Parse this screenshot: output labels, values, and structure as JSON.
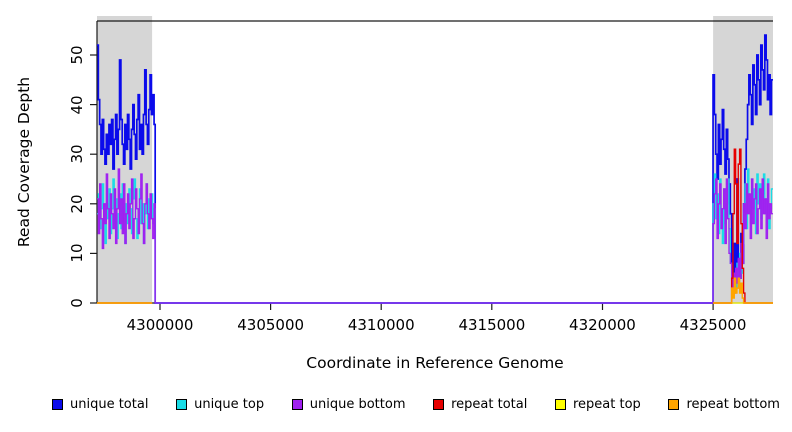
{
  "chart_data": {
    "type": "line",
    "subtype": "step-coverage-plot",
    "title": "",
    "xlabel": "Coordinate in Reference Genome",
    "ylabel": "Read Coverage Depth",
    "xlim": [
      4297150,
      4327710
    ],
    "ylim": [
      0,
      57
    ],
    "x_ticks": [
      4300000,
      4305000,
      4310000,
      4315000,
      4320000,
      4325000
    ],
    "y_ticks": [
      0,
      10,
      20,
      30,
      40,
      50
    ],
    "grid": false,
    "legend_position": "bottom",
    "shaded_region_color": "#D6D6D6",
    "shaded_regions": [
      {
        "x0": 4297150,
        "x1": 4299640
      },
      {
        "x0": 4325000,
        "x1": 4327710
      }
    ],
    "series": [
      {
        "name": "unique total",
        "color": "#0B0BEB",
        "width": 1.7,
        "paths": [
          [
            {
              "x0": 4297150,
              "dx": 60,
              "v": [
                52,
                41,
                36,
                30,
                37,
                31,
                28,
                34,
                30,
                36,
                32,
                37,
                27,
                33,
                38,
                30,
                35,
                49,
                37,
                32,
                28,
                36,
                31,
                38,
                33,
                27,
                35,
                40,
                34,
                29,
                37,
                42,
                31,
                36,
                30,
                38,
                47,
                36,
                32,
                39,
                46,
                38,
                42,
                36
              ]
            },
            {
              "pts": [
                [
                  4299780,
                  0
                ]
              ]
            },
            {
              "x0": 4325000,
              "dx": 60,
              "v": [
                46,
                38,
                30,
                25,
                36,
                28,
                33,
                39,
                31,
                26,
                35,
                29,
                24,
                18,
                8,
                4,
                12,
                6,
                25,
                9,
                5,
                14,
                8,
                20,
                27,
                33,
                40,
                46,
                42,
                36,
                48,
                44,
                38,
                50,
                45,
                40,
                52,
                47,
                43,
                54,
                49,
                41,
                46,
                38,
                45
              ]
            },
            {
              "pts": [
                [
                  4327710,
                  45
                ]
              ]
            }
          ]
        ]
      },
      {
        "name": "unique top",
        "color": "#19DCE6",
        "width": 1.3,
        "paths": [
          [
            {
              "x0": 4297150,
              "dx": 60,
              "v": [
                18,
                22,
                15,
                19,
                24,
                16,
                12,
                20,
                17,
                23,
                14,
                19,
                25,
                16,
                21,
                13,
                18,
                22,
                15,
                24,
                17,
                12,
                20,
                16,
                23,
                19,
                14,
                21,
                25,
                17,
                13,
                19,
                23,
                16,
                20,
                12,
                18,
                24,
                15,
                21,
                17,
                22,
                16,
                19
              ]
            },
            {
              "pts": [
                [
                  4299780,
                  0
                ]
              ]
            },
            {
              "x0": 4325000,
              "dx": 60,
              "v": [
                20,
                26,
                17,
                22,
                14,
                25,
                19,
                12,
                23,
                16,
                20,
                25,
                15,
                8,
                5,
                2,
                6,
                3,
                8,
                4,
                10,
                6,
                12,
                18,
                24,
                15,
                27,
                21,
                16,
                25,
                19,
                23,
                14,
                26,
                20,
                24,
                17,
                22,
                26,
                18,
                21,
                25,
                15,
                19,
                23
              ]
            },
            {
              "pts": [
                [
                  4327710,
                  23
                ]
              ]
            }
          ]
        ]
      },
      {
        "name": "unique bottom",
        "color": "#A020F0",
        "width": 1.3,
        "paths": [
          [
            {
              "x0": 4297150,
              "dx": 60,
              "v": [
                21,
                14,
                24,
                17,
                11,
                20,
                16,
                26,
                19,
                13,
                22,
                18,
                15,
                23,
                12,
                19,
                27,
                16,
                21,
                14,
                24,
                12,
                18,
                22,
                15,
                20,
                25,
                13,
                17,
                23,
                19,
                14,
                21,
                26,
                16,
                12,
                20,
                24,
                18,
                15,
                22,
                17,
                13,
                20
              ]
            },
            {
              "pts": [
                [
                  4299780,
                  0
                ]
              ]
            },
            {
              "x0": 4325000,
              "dx": 60,
              "v": [
                16,
                22,
                25,
                13,
                20,
                24,
                15,
                19,
                23,
                12,
                25,
                17,
                10,
                8,
                3,
                6,
                2,
                7,
                4,
                9,
                5,
                12,
                8,
                20,
                15,
                24,
                18,
                22,
                13,
                25,
                16,
                21,
                24,
                14,
                19,
                23,
                15,
                25,
                18,
                21,
                13,
                24,
                17,
                20,
                18
              ]
            },
            {
              "pts": [
                [
                  4327710,
                  18
                ]
              ]
            }
          ]
        ]
      },
      {
        "name": "repeat total",
        "color": "#E60000",
        "width": 1.4,
        "paths": [
          [
            {
              "pts": [
                [
                  4297150,
                  0
                ],
                [
                  4299640,
                  0
                ]
              ]
            }
          ],
          [
            {
              "x0": 4325000,
              "dx": 60,
              "v": [
                0,
                0,
                0,
                0,
                0,
                0,
                0,
                0,
                0,
                0,
                0,
                0,
                0,
                0,
                5,
                18,
                31,
                24,
                12,
                28,
                31,
                16,
                7,
                2,
                0,
                0,
                0,
                0,
                0,
                0,
                0,
                0,
                0,
                0,
                0,
                0,
                0,
                0,
                0,
                0,
                0,
                0,
                0,
                0,
                0
              ]
            },
            {
              "pts": [
                [
                  4327710,
                  0
                ]
              ]
            }
          ]
        ]
      },
      {
        "name": "repeat top",
        "color": "#FFFF00",
        "width": 1.2,
        "paths": [
          [
            {
              "pts": [
                [
                  4297150,
                  0
                ],
                [
                  4299640,
                  0
                ]
              ]
            }
          ],
          [
            {
              "pts": [
                [
                  4325000,
                  0
                ],
                [
                  4327710,
                  0
                ]
              ]
            }
          ]
        ]
      },
      {
        "name": "repeat bottom",
        "color": "#FFA500",
        "width": 1.4,
        "paths": [
          [
            {
              "pts": [
                [
                  4297150,
                  0
                ],
                [
                  4299640,
                  0
                ]
              ]
            }
          ],
          [
            {
              "x0": 4325000,
              "dx": 60,
              "v": [
                0,
                0,
                0,
                0,
                0,
                0,
                0,
                0,
                0,
                0,
                0,
                0,
                0,
                0,
                3,
                1,
                5,
                2,
                3,
                5,
                2,
                4,
                1,
                0,
                0,
                0,
                0,
                0,
                0,
                0,
                0,
                0,
                0,
                0,
                0,
                0,
                0,
                0,
                0,
                0,
                0,
                0,
                0,
                0,
                0
              ]
            },
            {
              "pts": [
                [
                  4327710,
                  0
                ]
              ]
            }
          ]
        ]
      }
    ]
  },
  "legend": {
    "items": [
      {
        "label": "unique total",
        "color": "#0B0BEB"
      },
      {
        "label": "unique top",
        "color": "#19DCE6"
      },
      {
        "label": "unique bottom",
        "color": "#A020F0"
      },
      {
        "label": "repeat total",
        "color": "#E60000"
      },
      {
        "label": "repeat top",
        "color": "#FFFF00"
      },
      {
        "label": "repeat bottom",
        "color": "#FFA500"
      }
    ]
  }
}
